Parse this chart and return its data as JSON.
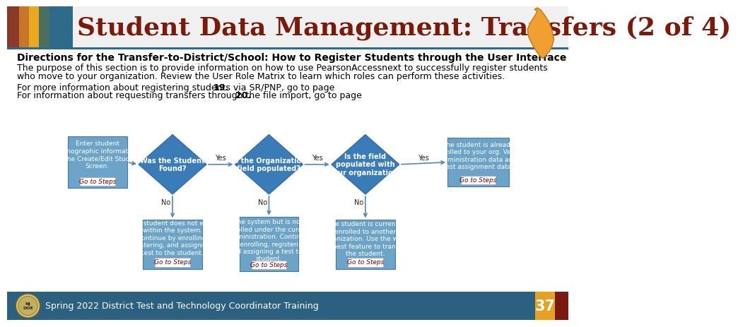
{
  "title": "Student Data Management: Transfers (2 of 4)",
  "title_color": "#7B1A0A",
  "header_colors": [
    "#A0522D",
    "#CD853F",
    "#E8A020",
    "#5F7F6F",
    "#2E6B8A"
  ],
  "subtitle": "Directions for the Transfer-to-District/School: How to Register Students through the User Interface",
  "body1": "The purpose of this section is to provide information on how to use PearsonAccessnext to successfully register students",
  "body2": "who move to your organization. Review the User Role Matrix to learn which roles can perform these activities.",
  "srp_line1a": "For more information about registering students via SR/PNP, go to page ",
  "srp_line1b": "19.",
  "srp_line2a": "For information about requesting transfers through the file import, go to page ",
  "srp_line2b": "20.",
  "footer_text": "Spring 2022 District Test and Technology Coordinator Training",
  "footer_page": "37",
  "footer_bg": "#2B6080",
  "bg_color": "#FFFFFF",
  "box_fill": "#6CA3C8",
  "diamond_fill": "#3A7CB8",
  "link_color": "#800000",
  "arrow_color": "#5588AA",
  "nj_color": "#F0A030"
}
